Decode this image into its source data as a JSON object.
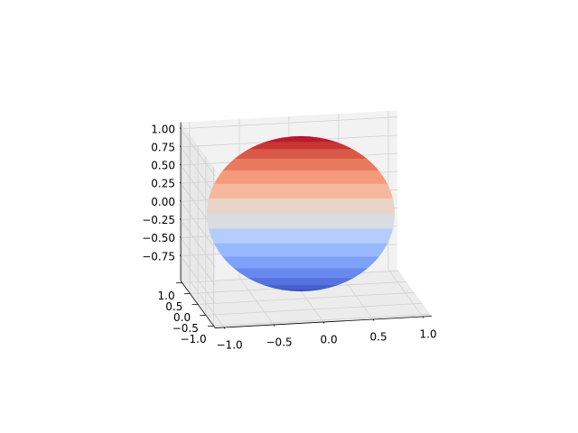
{
  "chart_data": {
    "type": "surface",
    "xlim": [
      -1.09,
      1.09
    ],
    "ylim": [
      -1.09,
      1.09
    ],
    "zlim": [
      -1.09,
      1.09
    ],
    "xticks": [
      {
        "value": -1,
        "label": "−1.0"
      },
      {
        "value": -0.5,
        "label": "−0.5"
      },
      {
        "value": 0,
        "label": "0.0"
      },
      {
        "value": 0.5,
        "label": "0.5"
      },
      {
        "value": 1,
        "label": "1.0"
      }
    ],
    "yticks": [
      {
        "value": -1,
        "label": "−1.0"
      },
      {
        "value": -0.5,
        "label": "−0.5"
      },
      {
        "value": 0,
        "label": "0.0"
      },
      {
        "value": 0.5,
        "label": "0.5"
      },
      {
        "value": 1,
        "label": "1.0"
      }
    ],
    "zticks": [
      {
        "value": -0.75,
        "label": "−0.75"
      },
      {
        "value": -0.5,
        "label": "−0.50"
      },
      {
        "value": -0.25,
        "label": "−0.25"
      },
      {
        "value": 0,
        "label": "0.00"
      },
      {
        "value": 0.25,
        "label": "0.25"
      },
      {
        "value": 0.5,
        "label": "0.50"
      },
      {
        "value": 0.75,
        "label": "0.75"
      },
      {
        "value": 1,
        "label": "1.00"
      }
    ],
    "z": [
      1,
      0.981,
      0.924,
      0.831,
      0.707,
      0.556,
      0.383,
      0.195,
      0,
      -0.195,
      -0.383,
      -0.556,
      -0.707,
      -0.831,
      -0.924,
      -0.981,
      -1
    ],
    "colors": [
      "#b40426",
      "#bb1b2c",
      "#c73635",
      "#d95847",
      "#e97a5f",
      "#f39b7a",
      "#f6b89c",
      "#ead4c8",
      "#d9dce1",
      "#b5cdfa",
      "#98b9ff",
      "#7ea1fa",
      "#6788ee",
      "#5572df",
      "#4560cc",
      "#3c4ec2"
    ],
    "grid": true
  }
}
